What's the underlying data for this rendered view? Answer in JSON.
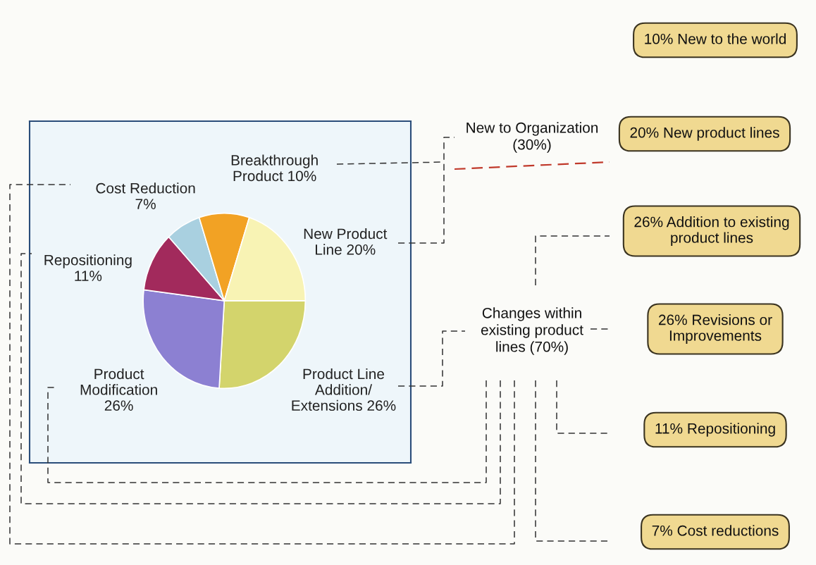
{
  "chart_data": {
    "type": "pie",
    "categories": [
      "Product Line\nAddition/\nExtensions 26%",
      "Product\nModification\n26%",
      "Repositioning\n11%",
      "Cost Reduction\n7%",
      "Breakthrough\nProduct 10%",
      "New Product\nLine 20%"
    ],
    "values": [
      26,
      26,
      11,
      7,
      10,
      20
    ],
    "colors": [
      "#d3d46c",
      "#8c80d2",
      "#a22a5c",
      "#a9d0e0",
      "#f2a224",
      "#f8f3b4"
    ],
    "annotations": [
      "10% New to the world",
      "20% New product lines",
      "26% Addition to existing\nproduct lines",
      "26% Revisions or\nImprovements",
      "11% Repositioning",
      "7% Cost reductions",
      "New to Organization\n(30%)",
      "Changes within\nexisting product\nlines (70%)"
    ]
  }
}
